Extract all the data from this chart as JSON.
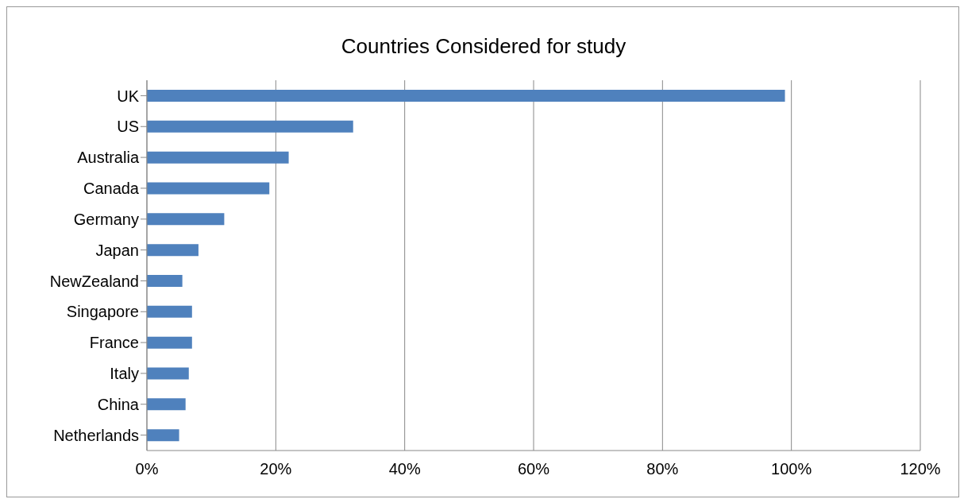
{
  "chart_data": {
    "type": "bar",
    "orientation": "horizontal",
    "title": "Countries Considered for study",
    "categories": [
      "UK",
      "US",
      "Australia",
      "Canada",
      "Germany",
      "Japan",
      "NewZealand",
      "Singapore",
      "France",
      "Italy",
      "China",
      "Netherlands"
    ],
    "values": [
      99,
      32,
      22,
      19,
      12,
      8,
      5.5,
      7,
      7,
      6.5,
      6,
      5
    ],
    "color": "#4f81bd",
    "xlim": [
      0,
      120
    ],
    "xticks": [
      {
        "value": 0,
        "label": "0%"
      },
      {
        "value": 20,
        "label": "20%"
      },
      {
        "value": 40,
        "label": "40%"
      },
      {
        "value": 60,
        "label": "60%"
      },
      {
        "value": 80,
        "label": "80%"
      },
      {
        "value": 100,
        "label": "100%"
      },
      {
        "value": 120,
        "label": "120%"
      }
    ],
    "grid": "x",
    "legend": false
  }
}
